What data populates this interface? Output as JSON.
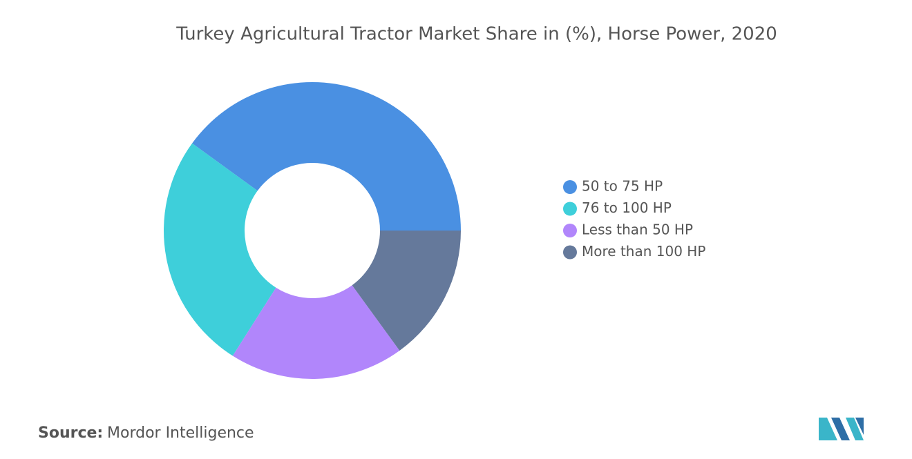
{
  "chart_data": {
    "type": "pie",
    "title": "Turkey Agricultural Tractor Market Share in (%), Horse Power, 2020",
    "categories": [
      "50 to 75 HP",
      "76 to 100 HP",
      "Less than 50 HP",
      "More than 100 HP"
    ],
    "values": [
      40,
      26,
      19,
      15
    ],
    "colors": [
      "#4a90e2",
      "#3ecfda",
      "#b186fb",
      "#65799b"
    ],
    "legend": "right"
  },
  "footer": {
    "source_label": "Source:",
    "source": "Mordor Intelligence"
  }
}
